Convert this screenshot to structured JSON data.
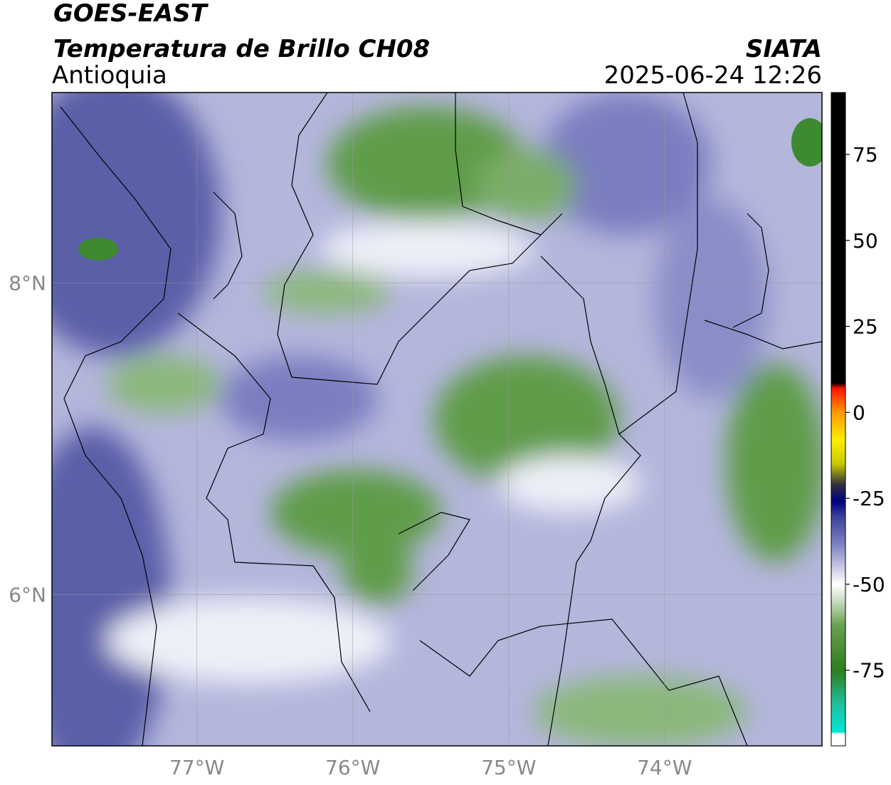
{
  "chart_data": {
    "type": "map",
    "title": "GOES-EAST",
    "subtitle": "Temperatura de Brillo CH08",
    "region": "Antioquia",
    "source": "SIATA",
    "datetime": "2025-06-24 12:26",
    "xlim": [
      -77.93,
      -72.99
    ],
    "ylim": [
      5.03,
      9.22
    ],
    "xticks": [
      {
        "value": -77,
        "label": "77°W"
      },
      {
        "value": -76,
        "label": "76°W"
      },
      {
        "value": -75,
        "label": "75°W"
      },
      {
        "value": -74,
        "label": "74°W"
      }
    ],
    "yticks": [
      {
        "value": 6,
        "label": "6°N"
      },
      {
        "value": 8,
        "label": "8°N"
      }
    ],
    "grid": true,
    "colorbar": {
      "lim": [
        -97,
        93
      ],
      "ticks": [
        -75,
        -50,
        -25,
        0,
        25,
        50,
        75
      ],
      "colormap": [
        {
          "value": -97,
          "color": "#ffffff"
        },
        {
          "value": -93.5,
          "color": "#ffffff"
        },
        {
          "value": -93,
          "color": "#00e8d8"
        },
        {
          "value": -85,
          "color": "#20c0a0"
        },
        {
          "value": -75,
          "color": "#2e7d1e"
        },
        {
          "value": -62,
          "color": "#6aa050"
        },
        {
          "value": -55,
          "color": "#c8dcc0"
        },
        {
          "value": -50,
          "color": "#ffffff"
        },
        {
          "value": -45,
          "color": "#c8c8e4"
        },
        {
          "value": -38,
          "color": "#7a7ec0"
        },
        {
          "value": -30,
          "color": "#3a3e9a"
        },
        {
          "value": -26,
          "color": "#000080"
        },
        {
          "value": -21,
          "color": "#303040"
        },
        {
          "value": -15,
          "color": "#c8c800"
        },
        {
          "value": -8,
          "color": "#ffee00"
        },
        {
          "value": 0,
          "color": "#ff9900"
        },
        {
          "value": 7,
          "color": "#ff1100"
        },
        {
          "value": 8.5,
          "color": "#000000"
        },
        {
          "value": 93,
          "color": "#000000"
        }
      ]
    }
  }
}
